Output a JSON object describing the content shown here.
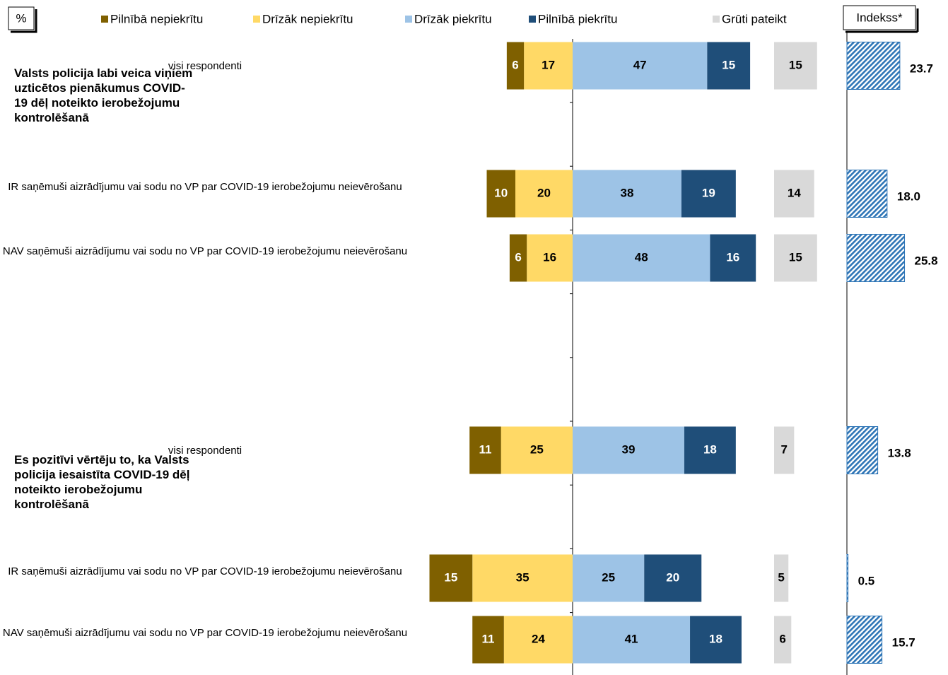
{
  "chart_data": {
    "type": "diverging_bar",
    "unit_label": "%",
    "series": [
      {
        "name": "Pilnībā nepiekrītu",
        "color": "#7f6000",
        "side": "negative",
        "values": [
          6,
          10,
          6,
          11,
          15,
          11
        ]
      },
      {
        "name": "Drīzāk nepiekrītu",
        "color": "#ffd966",
        "side": "negative",
        "values": [
          17,
          20,
          16,
          25,
          35,
          24
        ]
      },
      {
        "name": "Drīzāk piekrītu",
        "color": "#9dc3e6",
        "side": "positive",
        "values": [
          47,
          38,
          48,
          39,
          25,
          41
        ]
      },
      {
        "name": "Pilnībā piekrītu",
        "color": "#1f4e79",
        "side": "positive",
        "values": [
          15,
          19,
          16,
          18,
          20,
          18
        ]
      },
      {
        "name": "Grūti pateikt",
        "color": "#d9d9d9",
        "side": "separate",
        "values": [
          15,
          14,
          15,
          7,
          5,
          6
        ]
      }
    ],
    "index": {
      "name": "Indekss*",
      "color": "#2e75b6",
      "values": [
        23.7,
        18.0,
        25.8,
        13.8,
        0.5,
        15.7
      ],
      "value_labels": [
        "23.7",
        "18.0",
        "25.8",
        "13.8",
        "0.5",
        "15.7"
      ]
    },
    "groups": [
      {
        "title": "Valsts policija labi veica viņiem uzticētos pienākumus COVID-19 dēļ noteikto ierobežojumu kontrolēšanā",
        "categories": [
          "visi respondenti",
          "IR saņēmuši aizrādījumu vai sodu no VP par COVID-19 ierobežojumu neievērošanu",
          "NAV saņēmuši aizrādījumu vai sodu no VP par COVID-19 ierobežojumu neievērošanu"
        ]
      },
      {
        "title": "Es pozitīvi vērtēju to, ka Valsts policija iesaistīta COVID-19 dēļ noteikto ierobežojumu kontrolēšanā",
        "categories": [
          "visi respondenti",
          "IR saņēmuši aizrādījumu vai sodu no VP par COVID-19 ierobežojumu neievērošanu",
          "NAV saņēmuši aizrādījumu vai sodu no VP par COVID-19 ierobežojumu neievērošanu"
        ]
      }
    ]
  }
}
